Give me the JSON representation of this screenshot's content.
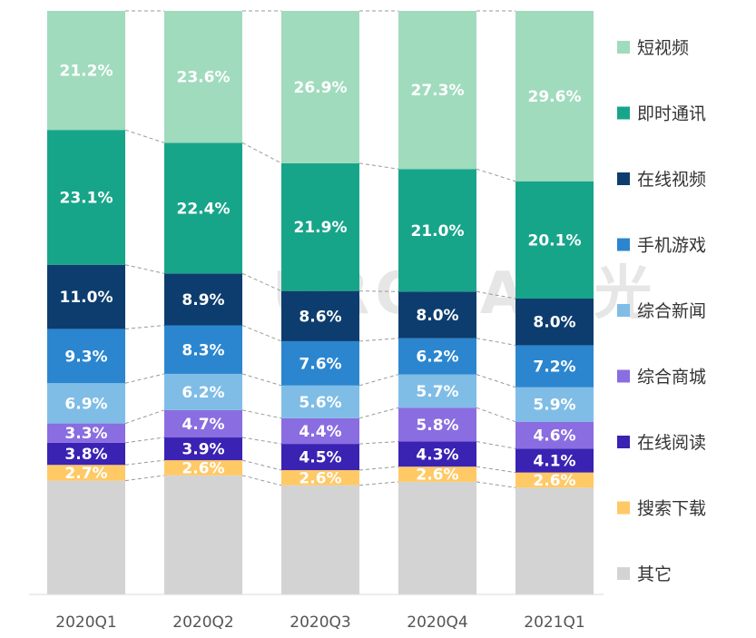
{
  "watermark": "URORA极光",
  "chart_data": {
    "type": "bar",
    "stacked": true,
    "categories": [
      "2020Q1",
      "2020Q2",
      "2020Q3",
      "2020Q4",
      "2021Q1"
    ],
    "series": [
      {
        "name": "其它",
        "color": "#d3d3d3",
        "values": [
          19.5,
          20.4,
          18.7,
          19.3,
          18.3
        ],
        "labels": [
          "",
          "",
          "",
          "",
          ""
        ]
      },
      {
        "name": "搜索下载",
        "color": "#ffc966",
        "values": [
          2.7,
          2.6,
          2.6,
          2.6,
          2.6
        ],
        "labels": [
          "2.7%",
          "2.6%",
          "2.6%",
          "2.6%",
          "2.6%"
        ]
      },
      {
        "name": "在线阅读",
        "color": "#3a22b3",
        "values": [
          3.8,
          3.9,
          4.5,
          4.3,
          4.1
        ],
        "labels": [
          "3.8%",
          "3.9%",
          "4.5%",
          "4.3%",
          "4.1%"
        ]
      },
      {
        "name": "综合商城",
        "color": "#8a6de0",
        "values": [
          3.3,
          4.7,
          4.4,
          5.8,
          4.6
        ],
        "labels": [
          "3.3%",
          "4.7%",
          "4.4%",
          "5.8%",
          "4.6%"
        ]
      },
      {
        "name": "综合新闻",
        "color": "#7fbde6",
        "values": [
          6.9,
          6.2,
          5.6,
          5.7,
          5.9
        ],
        "labels": [
          "6.9%",
          "6.2%",
          "5.6%",
          "5.7%",
          "5.9%"
        ]
      },
      {
        "name": "手机游戏",
        "color": "#2b86cf",
        "values": [
          9.3,
          8.3,
          7.6,
          6.2,
          7.2
        ],
        "labels": [
          "9.3%",
          "8.3%",
          "7.6%",
          "6.2%",
          "7.2%"
        ]
      },
      {
        "name": "在线视频",
        "color": "#0d3d6e",
        "values": [
          11.0,
          8.9,
          8.6,
          8.0,
          8.0
        ],
        "labels": [
          "11.0%",
          "8.9%",
          "8.6%",
          "8.0%",
          "8.0%"
        ]
      },
      {
        "name": "即时通讯",
        "color": "#17a58a",
        "values": [
          23.1,
          22.4,
          21.9,
          21.0,
          20.1
        ],
        "labels": [
          "23.1%",
          "22.4%",
          "21.9%",
          "21.0%",
          "20.1%"
        ]
      },
      {
        "name": "短视频",
        "color": "#a0dbbd",
        "values": [
          21.2,
          23.6,
          26.9,
          27.3,
          29.6
        ],
        "labels": [
          "21.2%",
          "23.6%",
          "26.9%",
          "27.3%",
          "29.6%"
        ]
      }
    ],
    "legend": [
      "短视频",
      "即时通讯",
      "在线视频",
      "手机游戏",
      "综合新闻",
      "综合商城",
      "在线阅读",
      "搜索下载",
      "其它"
    ],
    "legend_position": "right",
    "ylim": [
      0,
      100
    ],
    "connector_lines": "dashed"
  }
}
